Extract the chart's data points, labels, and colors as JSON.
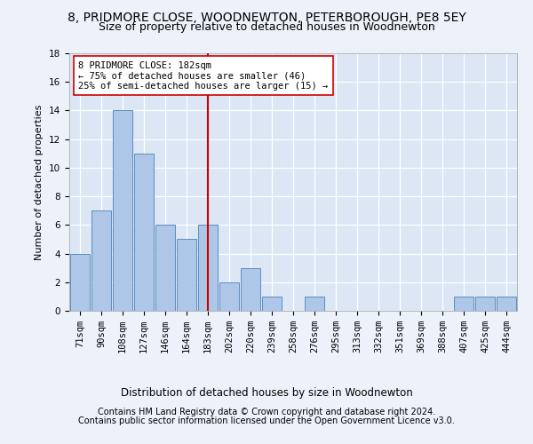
{
  "title": "8, PRIDMORE CLOSE, WOODNEWTON, PETERBOROUGH, PE8 5EY",
  "subtitle": "Size of property relative to detached houses in Woodnewton",
  "xlabel": "Distribution of detached houses by size in Woodnewton",
  "ylabel": "Number of detached properties",
  "footer_line1": "Contains HM Land Registry data © Crown copyright and database right 2024.",
  "footer_line2": "Contains public sector information licensed under the Open Government Licence v3.0.",
  "categories": [
    "71sqm",
    "90sqm",
    "108sqm",
    "127sqm",
    "146sqm",
    "164sqm",
    "183sqm",
    "202sqm",
    "220sqm",
    "239sqm",
    "258sqm",
    "276sqm",
    "295sqm",
    "313sqm",
    "332sqm",
    "351sqm",
    "369sqm",
    "388sqm",
    "407sqm",
    "425sqm",
    "444sqm"
  ],
  "values": [
    4,
    7,
    14,
    11,
    6,
    5,
    6,
    2,
    3,
    1,
    0,
    1,
    0,
    0,
    0,
    0,
    0,
    0,
    1,
    1,
    1
  ],
  "bar_color": "#aec6e8",
  "bar_edge_color": "#5a8fc0",
  "vline_x": 6,
  "vline_color": "#cc0000",
  "annotation_text": "8 PRIDMORE CLOSE: 182sqm\n← 75% of detached houses are smaller (46)\n25% of semi-detached houses are larger (15) →",
  "annotation_box_color": "#ffffff",
  "annotation_box_edge_color": "#cc0000",
  "ylim": [
    0,
    18
  ],
  "yticks": [
    0,
    2,
    4,
    6,
    8,
    10,
    12,
    14,
    16,
    18
  ],
  "background_color": "#edf2fa",
  "plot_bg_color": "#dce6f5",
  "grid_color": "#ffffff",
  "title_fontsize": 10,
  "subtitle_fontsize": 9,
  "label_fontsize": 8,
  "tick_fontsize": 7.5,
  "footer_fontsize": 7,
  "annotation_fontsize": 7.5
}
